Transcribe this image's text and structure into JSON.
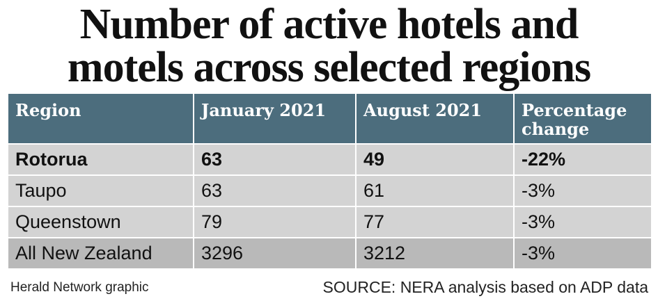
{
  "title_lines": [
    "Number of active hotels and",
    "motels across selected regions"
  ],
  "table": {
    "header": [
      "Region",
      "January 2021",
      "August 2021",
      "Percentage change"
    ],
    "rows": [
      [
        "Rotorua",
        63,
        49,
        "-22%"
      ],
      [
        "Taupo",
        63,
        61,
        "-3%"
      ],
      [
        "Queenstown",
        79,
        77,
        "-3%"
      ],
      [
        "All New Zealand",
        3296,
        3212,
        "-3%"
      ]
    ]
  },
  "footer": {
    "credit": "Herald Network graphic",
    "source": "SOURCE: NERA analysis based on ADP data"
  }
}
